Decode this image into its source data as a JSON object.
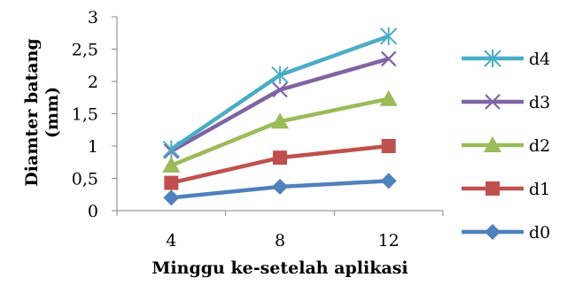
{
  "chart_data": {
    "type": "line",
    "x": [
      4,
      8,
      12
    ],
    "categories": [
      "4",
      "8",
      "12"
    ],
    "xlabel": "Minggu ke-setelah aplikasi",
    "ylabel_lines": [
      "Diamter batang",
      "(mm)"
    ],
    "ylim": [
      0,
      3
    ],
    "yticks": [
      "0",
      "0,5",
      "1",
      "1,5",
      "2",
      "2,5",
      "3"
    ],
    "ytick_values": [
      0,
      0.5,
      1,
      1.5,
      2,
      2.5,
      3
    ],
    "grid": false,
    "legend_position": "right",
    "series": [
      {
        "name": "d4",
        "values": [
          0.95,
          2.1,
          2.7
        ],
        "color": "#4bacc6",
        "marker": "asterisk"
      },
      {
        "name": "d3",
        "values": [
          0.92,
          1.87,
          2.35
        ],
        "color": "#8064a2",
        "marker": "x"
      },
      {
        "name": "d2",
        "values": [
          0.7,
          1.38,
          1.73
        ],
        "color": "#9bbb59",
        "marker": "triangle"
      },
      {
        "name": "d1",
        "values": [
          0.43,
          0.82,
          1.0
        ],
        "color": "#c0504d",
        "marker": "square"
      },
      {
        "name": "d0",
        "values": [
          0.2,
          0.37,
          0.46
        ],
        "color": "#4f81bd",
        "marker": "diamond"
      }
    ]
  }
}
